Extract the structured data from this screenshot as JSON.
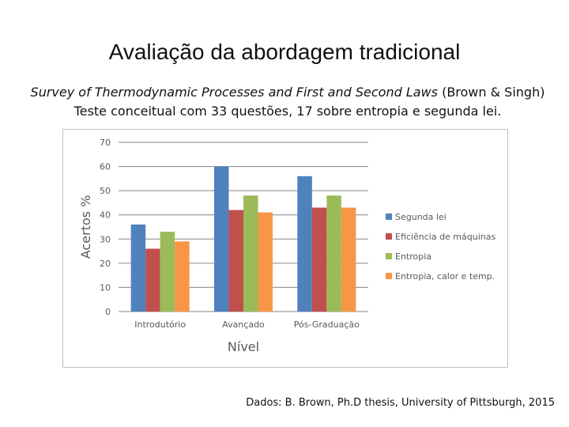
{
  "slide": {
    "title": "Avaliação da abordagem tradicional",
    "subtitle_italic": "Survey of Thermodynamic Processes and First and Second Laws",
    "subtitle_rest": " (Brown & Singh)",
    "subtitle_line2": "Teste conceitual com 33 questões, 17 sobre entropia e segunda lei.",
    "source": "Dados: B. Brown, Ph.D thesis, University of Pittsburgh, 2015"
  },
  "chart_data": {
    "type": "bar",
    "title": "",
    "xlabel": "Nível",
    "ylabel": "Acertos %",
    "ylim": [
      0,
      70
    ],
    "yticks": [
      "0",
      "10",
      "20",
      "30",
      "40",
      "50",
      "60",
      "70"
    ],
    "grid": true,
    "legend_position": "right",
    "categories": [
      "Introdutório",
      "Avançado",
      "Pós-Graduação"
    ],
    "series": [
      {
        "name": "Segunda lei",
        "color": "#4f81bd",
        "values": [
          36,
          60,
          56
        ]
      },
      {
        "name": "Eficiência de máquinas",
        "color": "#c0504d",
        "values": [
          26,
          42,
          43
        ]
      },
      {
        "name": "Entropia",
        "color": "#9bbb59",
        "values": [
          33,
          48,
          48
        ]
      },
      {
        "name": "Entropia, calor e temp.",
        "color": "#f79646",
        "values": [
          29,
          41,
          43
        ]
      }
    ]
  }
}
